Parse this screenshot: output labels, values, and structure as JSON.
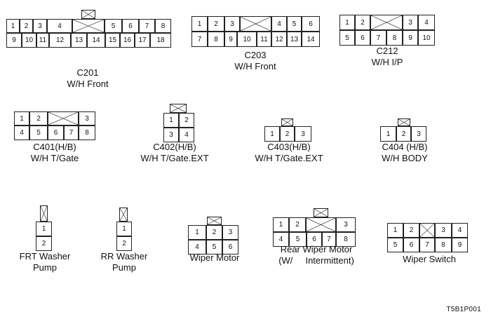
{
  "figure_id": "T5B1P001",
  "connectors": [
    {
      "id": "c201",
      "name": "C201",
      "sub": "W/H Front",
      "pins": [
        "1",
        "2",
        "3",
        "4",
        "5",
        "6",
        "7",
        "8",
        "9",
        "10",
        "11",
        "12",
        "13",
        "14",
        "15",
        "16",
        "17",
        "18"
      ]
    },
    {
      "id": "c203",
      "name": "C203",
      "sub": "W/H Front",
      "pins": [
        "1",
        "2",
        "3",
        "4",
        "5",
        "6",
        "7",
        "8",
        "9",
        "10",
        "11",
        "12",
        "13",
        "14"
      ]
    },
    {
      "id": "c212",
      "name": "C212",
      "sub": "W/H I/P",
      "pins": [
        "1",
        "2",
        "3",
        "4",
        "5",
        "6",
        "7",
        "8",
        "9",
        "10"
      ]
    },
    {
      "id": "c401",
      "name": "C401(H/B)",
      "sub": "W/H T/Gate",
      "pins": [
        "1",
        "2",
        "3",
        "4",
        "5",
        "6",
        "7",
        "8"
      ]
    },
    {
      "id": "c402",
      "name": "C402(H/B)",
      "sub": "W/H T/Gate.EXT",
      "pins": [
        "1",
        "2",
        "3",
        "4"
      ]
    },
    {
      "id": "c403",
      "name": "C403(H/B)",
      "sub": "W/H T/Gate.EXT",
      "pins": [
        "1",
        "2",
        "3"
      ]
    },
    {
      "id": "c404",
      "name": "C404 (H/B)",
      "sub": "W/H BODY",
      "pins": [
        "1",
        "2",
        "3"
      ]
    },
    {
      "id": "frt-washer-pump",
      "name": "FRT Washer",
      "sub": "Pump",
      "pins": [
        "1",
        "2"
      ]
    },
    {
      "id": "rr-washer-pump",
      "name": "RR Washer",
      "sub": "Pump",
      "pins": [
        "1",
        "2"
      ]
    },
    {
      "id": "wiper-motor",
      "name": "Wiper Motor",
      "sub": "",
      "pins": [
        "1",
        "2",
        "3",
        "4",
        "5",
        "6"
      ]
    },
    {
      "id": "rear-wiper-motor",
      "name": "Rear Wiper Motor",
      "sub": "(W/     Intermittent)",
      "pins": [
        "1",
        "2",
        "3",
        "4",
        "5",
        "6",
        "7",
        "8"
      ]
    },
    {
      "id": "wiper-switch",
      "name": "Wiper Switch",
      "sub": "",
      "pins": [
        "1",
        "2",
        "3",
        "4",
        "5",
        "6",
        "7",
        "8",
        "9"
      ]
    }
  ]
}
